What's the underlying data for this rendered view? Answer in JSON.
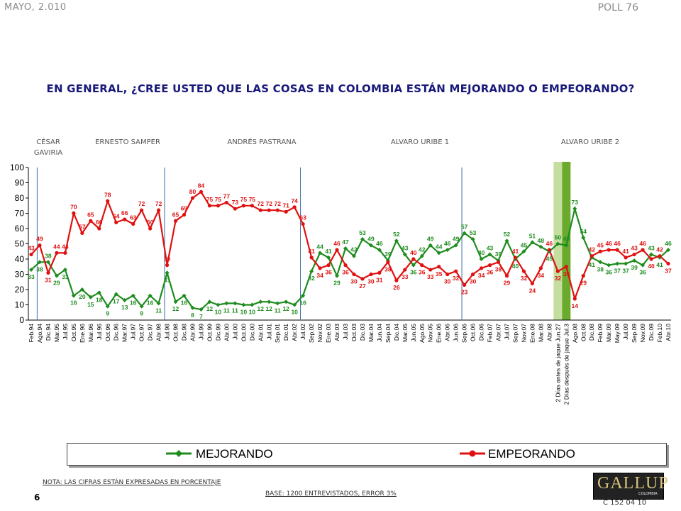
{
  "header": {
    "date": "MAYO, 2.010",
    "poll": "POLL 76"
  },
  "question": "EN GENERAL, ¿CREE USTED QUE LAS COSAS EN COLOMBIA ESTÁN MEJORANDO O EMPEORANDO?",
  "presidents": [
    {
      "label1": "CÉSAR",
      "label2": "GAVIRIA"
    },
    {
      "label1": "ERNESTO SAMPER"
    },
    {
      "label1": "ANDRÉS  PASTRANA"
    },
    {
      "label1": "ALVARO URIBE 1"
    },
    {
      "label1": "ALVARO URIBE 2"
    }
  ],
  "footer": {
    "nota": "NOTA: LAS CIFRAS ESTÁN EXPRESADAS EN PORCENTAJE",
    "base": "BASE: 1200 ENTREVISTADOS, ERROR 3%",
    "page": "6",
    "code": "C 152 04 10",
    "logo": "GALLUP",
    "logo_sub": "COLOMBIA"
  },
  "colors": {
    "mejorando": "#1e8c1e",
    "empeorando": "#e01010",
    "highlight_light": "#c4dea0",
    "highlight_dark": "#6aab2e",
    "divider": "#3a6ea8"
  },
  "chart_data": {
    "type": "line",
    "ylim": [
      0,
      100
    ],
    "yticks": [
      0,
      10,
      20,
      30,
      40,
      50,
      60,
      70,
      80,
      90,
      100
    ],
    "grid": false,
    "legend_position": "bottom",
    "categories": [
      "Feb.94",
      "Ago.94",
      "Dic.94",
      "Mar.95",
      "Jul.95",
      "Oct.95",
      "Ene.96",
      "Mar.96",
      "Jul.96",
      "Oct.96",
      "Dic.96",
      "Mar.97",
      "Jul.97",
      "Oct.97",
      "Dic.97",
      "Abr.98",
      "Jul.98",
      "Oct.98",
      "Dic.98",
      "Abr.99",
      "Jul.99",
      "Oct.99",
      "Dic.99",
      "Abr.00",
      "Jul.00",
      "Oct.00",
      "Dic.00",
      "Abr.01",
      "Jul.01",
      "Sep.01",
      "Dic.01",
      "Abr.02",
      "Jul.02",
      "Sep.02",
      "Nov.02",
      "Ene.03",
      "Abr.03",
      "Jul.03",
      "Oct.03",
      "Dic.03",
      "Mar.04",
      "Jun.04",
      "Sep.04",
      "Dic.04",
      "Mar.05",
      "Jun.05",
      "Ago.05",
      "Nov.05",
      "Ene.06",
      "Abr.06",
      "Jun.06",
      "Sep.06",
      "Oct.06",
      "Dic.06",
      "Feb.07",
      "Abr.07",
      "Jul.07",
      "Sep.07",
      "Nov.07",
      "Ene.08",
      "Mar.08",
      "Abr.08",
      "2 Días antes de jaque Jun.27",
      "2 Días después de jaque Jul.3",
      "Ago.08",
      "Oct.08",
      "Dic.08",
      "Feb.09",
      "Mar.09",
      "May.09",
      "Jul.09",
      "Sep.09",
      "Nov.09",
      "Dic.09",
      "Feb.10",
      "Abr.10"
    ],
    "series": [
      {
        "name": "MEJORANDO",
        "values": [
          33,
          38,
          38,
          29,
          33,
          16,
          20,
          15,
          18,
          9,
          17,
          13,
          16,
          9,
          16,
          11,
          31,
          12,
          16,
          8,
          7,
          12,
          10,
          11,
          11,
          10,
          10,
          12,
          12,
          11,
          12,
          10,
          16,
          32,
          44,
          41,
          29,
          47,
          42,
          53,
          49,
          46,
          39,
          52,
          43,
          36,
          42,
          49,
          44,
          46,
          49,
          57,
          53,
          40,
          43,
          39,
          52,
          40,
          45,
          51,
          48,
          45,
          50,
          49,
          73,
          54,
          41,
          38,
          36,
          37,
          37,
          39,
          36,
          43,
          41,
          46
        ]
      },
      {
        "name": "EMPEORANDO",
        "values": [
          43,
          49,
          31,
          44,
          44,
          70,
          57,
          65,
          60,
          78,
          64,
          66,
          63,
          72,
          60,
          72,
          36,
          65,
          69,
          80,
          84,
          75,
          75,
          77,
          73,
          75,
          75,
          72,
          72,
          72,
          71,
          74,
          63,
          41,
          34,
          36,
          46,
          36,
          30,
          27,
          30,
          31,
          38,
          26,
          33,
          40,
          36,
          33,
          35,
          30,
          32,
          23,
          30,
          34,
          36,
          38,
          29,
          41,
          32,
          24,
          34,
          46,
          32,
          35,
          14,
          29,
          42,
          45,
          46,
          46,
          41,
          43,
          46,
          40,
          42,
          37
        ]
      }
    ]
  }
}
